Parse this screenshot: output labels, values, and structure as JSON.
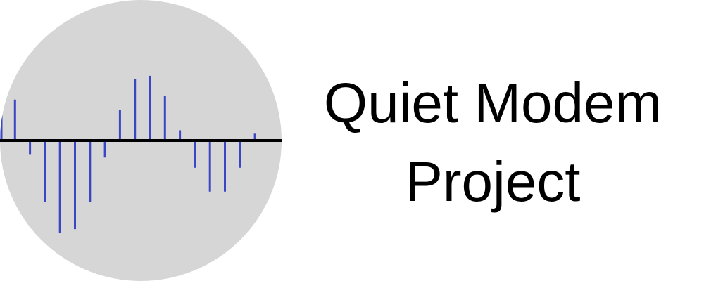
{
  "logo": {
    "title_line_1": "Quiet Modem",
    "title_line_2": "Project",
    "icon": "waveform-signal-icon",
    "colors": {
      "circle": "#d6d6d6",
      "baseline": "#000000",
      "signal": "#3b46c4",
      "text": "#000000"
    },
    "signal_samples": [
      1.0,
      0.6,
      -0.2,
      -0.9,
      -1.35,
      -1.3,
      -0.9,
      -0.25,
      0.45,
      0.9,
      0.95,
      0.65,
      0.15,
      -0.4,
      -0.75,
      -0.75,
      -0.4,
      0.1
    ]
  }
}
